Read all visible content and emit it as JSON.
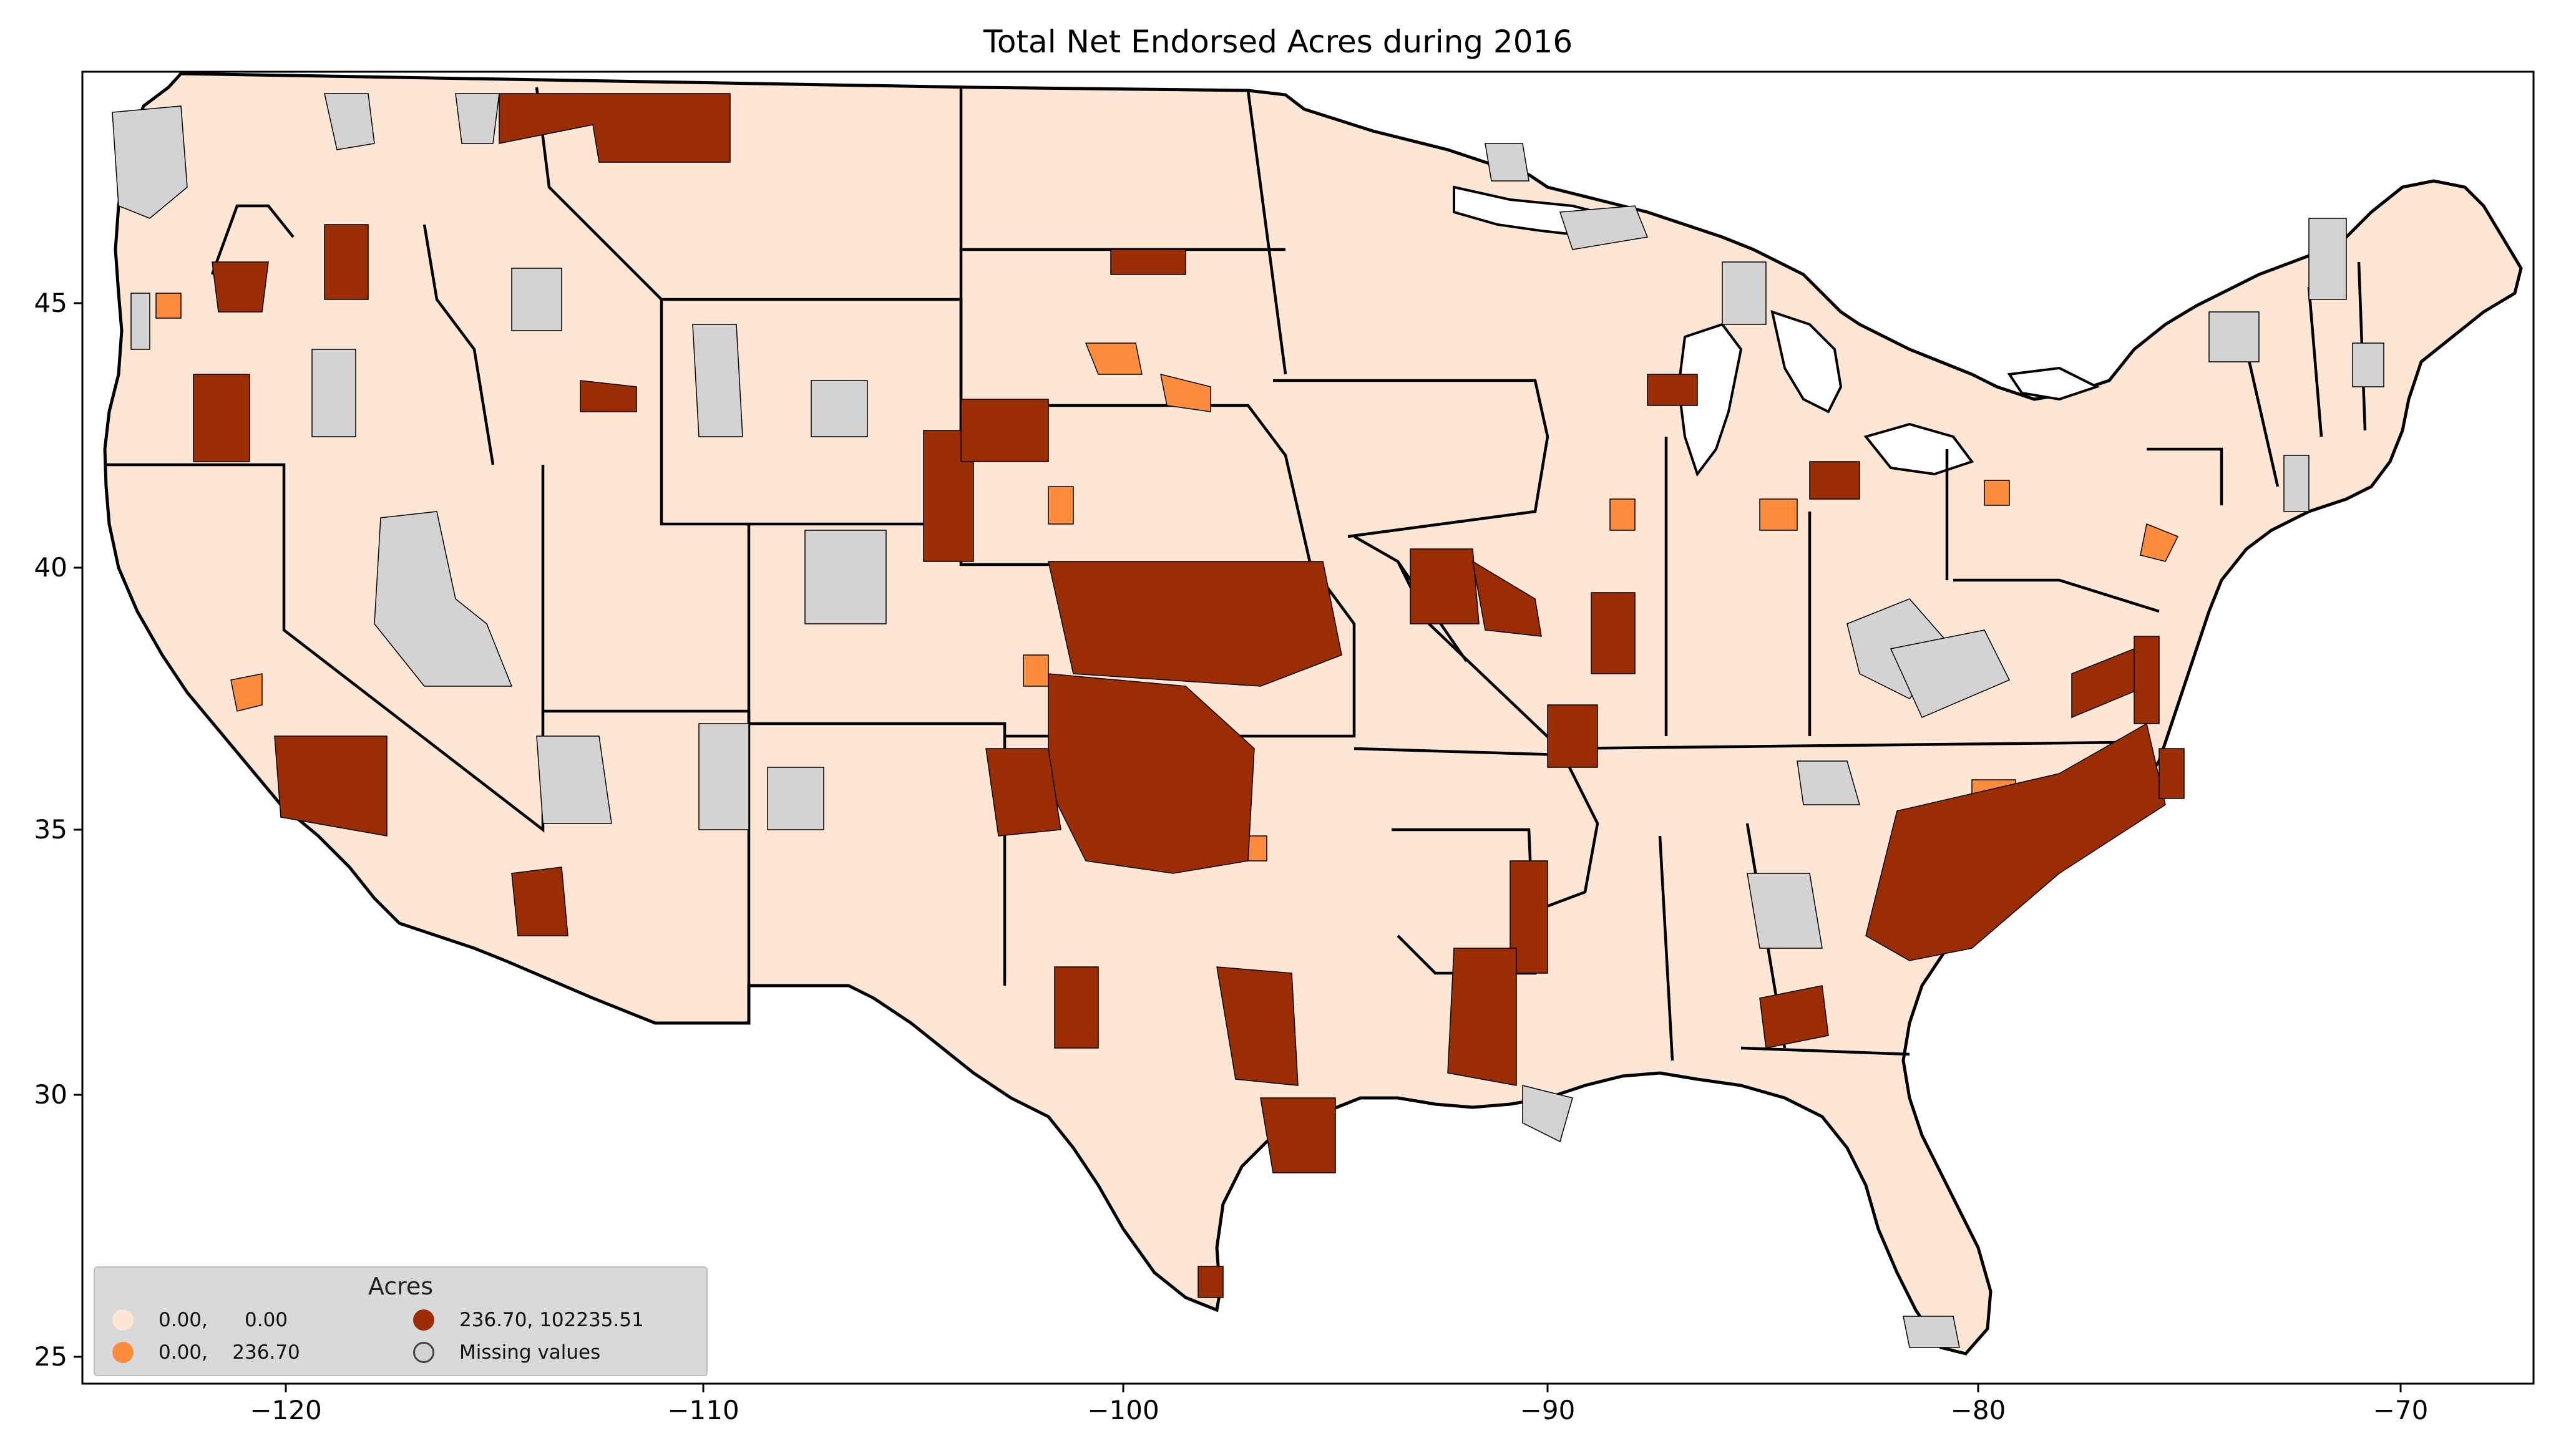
{
  "title": "Total Net Endorsed Acres during 2016",
  "axes": {
    "x_ticks": [
      "−120",
      "−110",
      "−100",
      "−90",
      "−80",
      "−70"
    ],
    "y_ticks": [
      "45",
      "40",
      "35",
      "30",
      "25"
    ]
  },
  "legend": {
    "title": "Acres",
    "items": [
      {
        "label": "0.00,      0.00",
        "color": "#fde7d4"
      },
      {
        "label": "0.00,    236.70",
        "color": "#fd8d3c"
      },
      {
        "label": "236.70, 102235.51",
        "color": "#9a2d04"
      },
      {
        "label": "Missing values",
        "color": "#d3d3d3"
      }
    ]
  },
  "colors": {
    "low": "#fde7d4",
    "mid": "#fd8d3c",
    "high": "#9a2d04",
    "missing": "#d3d3d3",
    "border": "#000000"
  }
}
